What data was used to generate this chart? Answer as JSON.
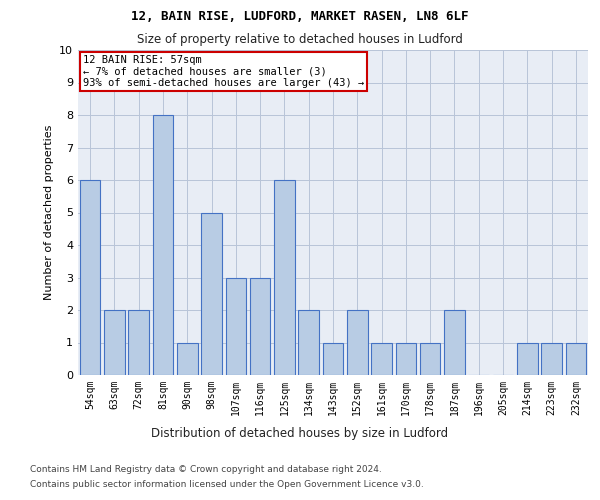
{
  "title1": "12, BAIN RISE, LUDFORD, MARKET RASEN, LN8 6LF",
  "title2": "Size of property relative to detached houses in Ludford",
  "xlabel": "Distribution of detached houses by size in Ludford",
  "ylabel": "Number of detached properties",
  "categories": [
    "54sqm",
    "63sqm",
    "72sqm",
    "81sqm",
    "90sqm",
    "98sqm",
    "107sqm",
    "116sqm",
    "125sqm",
    "134sqm",
    "143sqm",
    "152sqm",
    "161sqm",
    "170sqm",
    "178sqm",
    "187sqm",
    "196sqm",
    "205sqm",
    "214sqm",
    "223sqm",
    "232sqm"
  ],
  "values": [
    6,
    2,
    2,
    8,
    1,
    5,
    3,
    3,
    6,
    2,
    1,
    2,
    1,
    1,
    1,
    2,
    0,
    0,
    1,
    1,
    1
  ],
  "bar_color": "#b8cce4",
  "bar_edge_color": "#4472c4",
  "annotation_title": "12 BAIN RISE: 57sqm",
  "annotation_line1": "← 7% of detached houses are smaller (3)",
  "annotation_line2": "93% of semi-detached houses are larger (43) →",
  "annotation_box_color": "#ffffff",
  "annotation_box_edge_color": "#cc0000",
  "ylim": [
    0,
    10
  ],
  "yticks": [
    0,
    1,
    2,
    3,
    4,
    5,
    6,
    7,
    8,
    9,
    10
  ],
  "footer1": "Contains HM Land Registry data © Crown copyright and database right 2024.",
  "footer2": "Contains public sector information licensed under the Open Government Licence v3.0.",
  "bg_color": "#ffffff",
  "plot_bg_color": "#e8edf5"
}
